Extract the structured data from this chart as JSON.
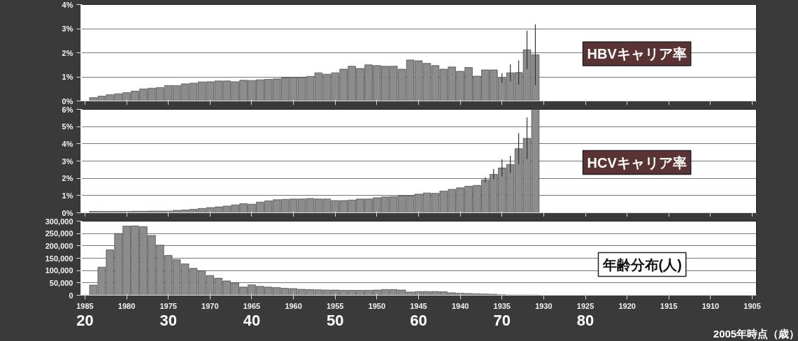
{
  "chart_data": [
    {
      "type": "bar",
      "annotations": [
        "HBVキャリア率"
      ],
      "x": [
        1984,
        1983,
        1982,
        1981,
        1980,
        1979,
        1978,
        1977,
        1976,
        1975,
        1974,
        1973,
        1972,
        1971,
        1970,
        1969,
        1968,
        1967,
        1966,
        1965,
        1964,
        1963,
        1962,
        1961,
        1960,
        1959,
        1958,
        1957,
        1956,
        1955,
        1954,
        1953,
        1952,
        1951,
        1950,
        1949,
        1948,
        1947,
        1946,
        1945,
        1944,
        1943,
        1942,
        1941,
        1940,
        1939,
        1938,
        1937,
        1936,
        1935,
        1934,
        1933,
        1932,
        1931
      ],
      "values": [
        0.14,
        0.2,
        0.26,
        0.3,
        0.35,
        0.41,
        0.5,
        0.53,
        0.56,
        0.64,
        0.64,
        0.71,
        0.74,
        0.79,
        0.8,
        0.83,
        0.83,
        0.8,
        0.86,
        0.85,
        0.88,
        0.9,
        0.92,
        0.97,
        0.98,
        0.98,
        1.02,
        1.17,
        1.11,
        1.17,
        1.32,
        1.44,
        1.35,
        1.5,
        1.47,
        1.44,
        1.44,
        1.32,
        1.7,
        1.67,
        1.56,
        1.47,
        1.32,
        1.41,
        1.23,
        1.39,
        1.03,
        1.29,
        1.29,
        0.95,
        1.17,
        1.18,
        2.12,
        1.92
      ],
      "errors": [
        null,
        null,
        null,
        null,
        null,
        null,
        null,
        null,
        null,
        null,
        null,
        null,
        null,
        null,
        null,
        null,
        null,
        null,
        null,
        null,
        null,
        null,
        null,
        null,
        null,
        null,
        null,
        null,
        null,
        null,
        null,
        null,
        null,
        null,
        null,
        null,
        null,
        null,
        null,
        null,
        null,
        null,
        null,
        null,
        null,
        null,
        null,
        null,
        null,
        0.2,
        0.35,
        0.5,
        0.8,
        1.26
      ],
      "color": "#8c8c8c",
      "xlim": [
        1985.5,
        1904.5
      ],
      "xticks": [
        1985,
        1980,
        1975,
        1970,
        1965,
        1960,
        1955,
        1950,
        1945,
        1940,
        1935,
        1930,
        1925,
        1920,
        1915,
        1910,
        1905
      ],
      "ylim": [
        0,
        4
      ],
      "yticks": [
        {
          "value": 0,
          "label": "0%"
        },
        {
          "value": 1,
          "label": "1%"
        },
        {
          "value": 2,
          "label": "2%"
        },
        {
          "value": 3,
          "label": "3%"
        },
        {
          "value": 4,
          "label": "4%"
        }
      ],
      "grid": "y",
      "tick_labels": "y"
    },
    {
      "type": "bar",
      "annotations": [
        "HCVキャリア率"
      ],
      "x": [
        1984,
        1983,
        1982,
        1981,
        1980,
        1979,
        1978,
        1977,
        1976,
        1975,
        1974,
        1973,
        1972,
        1971,
        1970,
        1969,
        1968,
        1967,
        1966,
        1965,
        1964,
        1963,
        1962,
        1961,
        1960,
        1959,
        1958,
        1957,
        1956,
        1955,
        1954,
        1953,
        1952,
        1951,
        1950,
        1949,
        1948,
        1947,
        1946,
        1945,
        1944,
        1943,
        1942,
        1941,
        1940,
        1939,
        1938,
        1937,
        1936,
        1935,
        1934,
        1933,
        1932,
        1931
      ],
      "values": [
        0.08,
        0.08,
        0.08,
        0.08,
        0.08,
        0.09,
        0.09,
        0.1,
        0.1,
        0.1,
        0.14,
        0.16,
        0.2,
        0.25,
        0.3,
        0.34,
        0.39,
        0.46,
        0.53,
        0.5,
        0.62,
        0.69,
        0.76,
        0.78,
        0.8,
        0.8,
        0.83,
        0.8,
        0.8,
        0.71,
        0.71,
        0.74,
        0.8,
        0.8,
        0.87,
        0.92,
        0.94,
        0.99,
        0.99,
        1.08,
        1.15,
        1.13,
        1.26,
        1.36,
        1.45,
        1.54,
        1.59,
        1.91,
        2.23,
        2.6,
        2.8,
        3.72,
        4.32,
        6
      ],
      "errors": [
        null,
        null,
        null,
        null,
        null,
        null,
        null,
        null,
        null,
        null,
        null,
        null,
        null,
        null,
        null,
        null,
        null,
        null,
        null,
        null,
        null,
        null,
        null,
        null,
        null,
        null,
        null,
        null,
        null,
        null,
        null,
        null,
        null,
        null,
        null,
        null,
        null,
        null,
        null,
        null,
        null,
        null,
        null,
        null,
        null,
        null,
        null,
        0.15,
        0.3,
        0.5,
        0.5,
        0.9,
        1.2,
        null
      ],
      "color": "#8c8c8c",
      "xlim": [
        1985.5,
        1904.5
      ],
      "xticks": [
        1985,
        1980,
        1975,
        1970,
        1965,
        1960,
        1955,
        1950,
        1945,
        1940,
        1935,
        1930,
        1925,
        1920,
        1915,
        1910,
        1905
      ],
      "ylim": [
        0,
        6
      ],
      "yticks": [
        {
          "value": 0,
          "label": "0%"
        },
        {
          "value": 1,
          "label": "1%"
        },
        {
          "value": 2,
          "label": "2%"
        },
        {
          "value": 3,
          "label": "3%"
        },
        {
          "value": 4,
          "label": "4%"
        },
        {
          "value": 5,
          "label": "5%"
        },
        {
          "value": 6,
          "label": "6%"
        }
      ],
      "grid": "y",
      "tick_labels": "y"
    },
    {
      "type": "bar",
      "annotations": [
        "年齢分布(人)"
      ],
      "x": [
        1984,
        1983,
        1982,
        1981,
        1980,
        1979,
        1978,
        1977,
        1976,
        1975,
        1974,
        1973,
        1972,
        1971,
        1970,
        1969,
        1968,
        1967,
        1966,
        1965,
        1964,
        1963,
        1962,
        1961,
        1960,
        1959,
        1958,
        1957,
        1956,
        1955,
        1954,
        1953,
        1952,
        1951,
        1950,
        1949,
        1948,
        1947,
        1946,
        1945,
        1944,
        1943,
        1942,
        1941,
        1940,
        1939,
        1938,
        1937,
        1936,
        1935,
        1934,
        1933,
        1932,
        1931
      ],
      "values": [
        41000,
        114000,
        184000,
        250000,
        280000,
        281000,
        278000,
        242000,
        203000,
        161000,
        144000,
        127000,
        109000,
        99000,
        80000,
        69000,
        58000,
        50000,
        33000,
        42000,
        36000,
        33000,
        31000,
        28000,
        27000,
        24000,
        23000,
        22000,
        21000,
        21000,
        20000,
        20000,
        20000,
        20000,
        21000,
        23000,
        23000,
        21000,
        13000,
        15000,
        15000,
        15000,
        14000,
        10000,
        8000,
        7000,
        6000,
        5000,
        4000,
        2000,
        1000,
        1000,
        1000,
        1000
      ],
      "color": "#8c8c8c",
      "xlim": [
        1985.5,
        1904.5
      ],
      "xticks": [
        1985,
        1980,
        1975,
        1970,
        1965,
        1960,
        1955,
        1950,
        1945,
        1940,
        1935,
        1930,
        1925,
        1920,
        1915,
        1910,
        1905
      ],
      "ylim": [
        0,
        300000
      ],
      "yticks": [
        {
          "value": 0,
          "label": "0"
        },
        {
          "value": 50000,
          "label": "50,000"
        },
        {
          "value": 100000,
          "label": "100,000"
        },
        {
          "value": 150000,
          "label": "150,000"
        },
        {
          "value": 200000,
          "label": "200,000"
        },
        {
          "value": 250000,
          "label": "250,000"
        },
        {
          "value": 300000,
          "label": "300,000"
        }
      ],
      "x2lim": [
        19.5,
        100.5
      ],
      "x2ticks": [
        20,
        30,
        40,
        50,
        60,
        70,
        80
      ],
      "x2label": "2005年時点（歳）",
      "grid": "y"
    }
  ]
}
